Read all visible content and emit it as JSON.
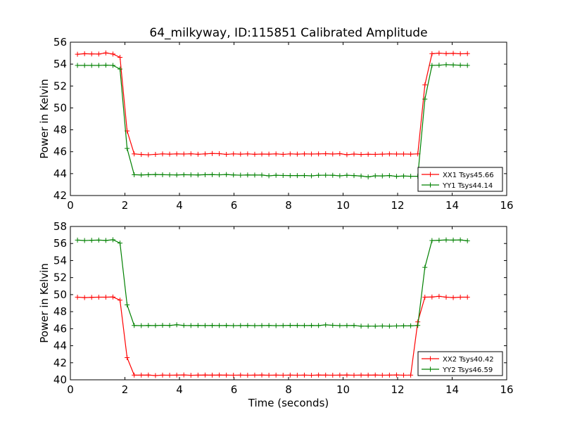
{
  "figure": {
    "title": "64_milkyway, ID:115851 Calibrated Amplitude",
    "xlabel": "Time (seconds)"
  },
  "chart_data": [
    {
      "type": "line",
      "title": "64_milkyway, ID:115851 Calibrated Amplitude",
      "xlabel": "",
      "ylabel": "Power in Kelvin",
      "xlim": [
        0,
        16
      ],
      "ylim": [
        42,
        56
      ],
      "xticks": [
        0,
        2,
        4,
        6,
        8,
        10,
        12,
        14,
        16
      ],
      "yticks": [
        42,
        44,
        46,
        48,
        50,
        52,
        54,
        56
      ],
      "grid": false,
      "legend_position": "lower-right",
      "x": [
        0.26,
        0.52,
        0.78,
        1.04,
        1.3,
        1.56,
        1.82,
        2.08,
        2.34,
        2.6,
        2.86,
        3.12,
        3.38,
        3.64,
        3.9,
        4.16,
        4.42,
        4.68,
        4.94,
        5.2,
        5.46,
        5.72,
        5.98,
        6.24,
        6.5,
        6.76,
        7.02,
        7.28,
        7.54,
        7.8,
        8.06,
        8.32,
        8.58,
        8.84,
        9.1,
        9.36,
        9.62,
        9.88,
        10.14,
        10.4,
        10.66,
        10.92,
        11.18,
        11.44,
        11.7,
        11.96,
        12.22,
        12.48,
        12.74,
        13.0,
        13.26,
        13.52,
        13.78,
        14.04,
        14.3,
        14.56
      ],
      "series": [
        {
          "name": "XX1 Tsys45.66",
          "color": "#ff0000",
          "values": [
            54.9,
            54.95,
            54.93,
            54.92,
            55.02,
            54.92,
            54.62,
            47.9,
            45.8,
            45.75,
            45.72,
            45.76,
            45.8,
            45.78,
            45.8,
            45.79,
            45.81,
            45.77,
            45.8,
            45.84,
            45.82,
            45.76,
            45.8,
            45.78,
            45.8,
            45.77,
            45.79,
            45.78,
            45.8,
            45.76,
            45.8,
            45.78,
            45.8,
            45.79,
            45.8,
            45.82,
            45.79,
            45.82,
            45.73,
            45.79,
            45.75,
            45.77,
            45.76,
            45.78,
            45.8,
            45.79,
            45.79,
            45.78,
            45.8,
            52.1,
            54.95,
            55.0,
            54.96,
            54.98,
            54.94,
            54.96
          ]
        },
        {
          "name": "YY1 Tsys44.14",
          "color": "#008000",
          "values": [
            53.88,
            53.88,
            53.88,
            53.88,
            53.9,
            53.88,
            53.55,
            46.3,
            43.9,
            43.88,
            43.9,
            43.92,
            43.9,
            43.89,
            43.88,
            43.9,
            43.89,
            43.88,
            43.9,
            43.91,
            43.89,
            43.92,
            43.88,
            43.86,
            43.88,
            43.87,
            43.87,
            43.8,
            43.85,
            43.83,
            43.82,
            43.82,
            43.83,
            43.8,
            43.85,
            43.86,
            43.85,
            43.8,
            43.85,
            43.82,
            43.78,
            43.7,
            43.8,
            43.79,
            43.82,
            43.75,
            43.78,
            43.76,
            43.76,
            50.8,
            53.88,
            53.9,
            53.95,
            53.92,
            53.9,
            53.88
          ]
        }
      ]
    },
    {
      "type": "line",
      "title": "",
      "xlabel": "Time (seconds)",
      "ylabel": "Power in Kelvin",
      "xlim": [
        0,
        16
      ],
      "ylim": [
        40,
        58
      ],
      "xticks": [
        0,
        2,
        4,
        6,
        8,
        10,
        12,
        14,
        16
      ],
      "yticks": [
        40,
        42,
        44,
        46,
        48,
        50,
        52,
        54,
        56,
        58
      ],
      "grid": false,
      "legend_position": "lower-right",
      "x": [
        0.26,
        0.52,
        0.78,
        1.04,
        1.3,
        1.56,
        1.82,
        2.08,
        2.34,
        2.6,
        2.86,
        3.12,
        3.38,
        3.64,
        3.9,
        4.16,
        4.42,
        4.68,
        4.94,
        5.2,
        5.46,
        5.72,
        5.98,
        6.24,
        6.5,
        6.76,
        7.02,
        7.28,
        7.54,
        7.8,
        8.06,
        8.32,
        8.58,
        8.84,
        9.1,
        9.36,
        9.62,
        9.88,
        10.14,
        10.4,
        10.66,
        10.92,
        11.18,
        11.44,
        11.7,
        11.96,
        12.22,
        12.48,
        12.74,
        13.0,
        13.26,
        13.52,
        13.78,
        14.04,
        14.3,
        14.56
      ],
      "series": [
        {
          "name": "XX2 Tsys40.42",
          "color": "#ff0000",
          "values": [
            49.7,
            49.65,
            49.68,
            49.7,
            49.7,
            49.72,
            49.35,
            42.6,
            40.55,
            40.55,
            40.56,
            40.5,
            40.55,
            40.54,
            40.55,
            40.57,
            40.53,
            40.55,
            40.56,
            40.55,
            40.56,
            40.55,
            40.54,
            40.55,
            40.54,
            40.55,
            40.56,
            40.54,
            40.55,
            40.54,
            40.55,
            40.54,
            40.55,
            40.53,
            40.56,
            40.55,
            40.54,
            40.55,
            40.56,
            40.54,
            40.55,
            40.55,
            40.56,
            40.54,
            40.55,
            40.57,
            40.54,
            40.55,
            46.8,
            49.7,
            49.72,
            49.8,
            49.7,
            49.65,
            49.7,
            49.7
          ]
        },
        {
          "name": "YY2 Tsys46.59",
          "color": "#008000",
          "values": [
            56.4,
            56.35,
            56.38,
            56.4,
            56.36,
            56.44,
            56.05,
            48.8,
            46.38,
            46.36,
            46.38,
            46.37,
            46.4,
            46.38,
            46.46,
            46.38,
            46.37,
            46.38,
            46.37,
            46.38,
            46.37,
            46.38,
            46.36,
            46.37,
            46.38,
            46.36,
            46.37,
            46.38,
            46.36,
            46.37,
            46.39,
            46.38,
            46.37,
            46.38,
            46.37,
            46.45,
            46.4,
            46.36,
            46.37,
            46.38,
            46.3,
            46.3,
            46.3,
            46.32,
            46.3,
            46.32,
            46.34,
            46.34,
            46.38,
            53.2,
            56.35,
            56.38,
            56.42,
            56.4,
            56.42,
            56.32
          ]
        }
      ]
    }
  ]
}
